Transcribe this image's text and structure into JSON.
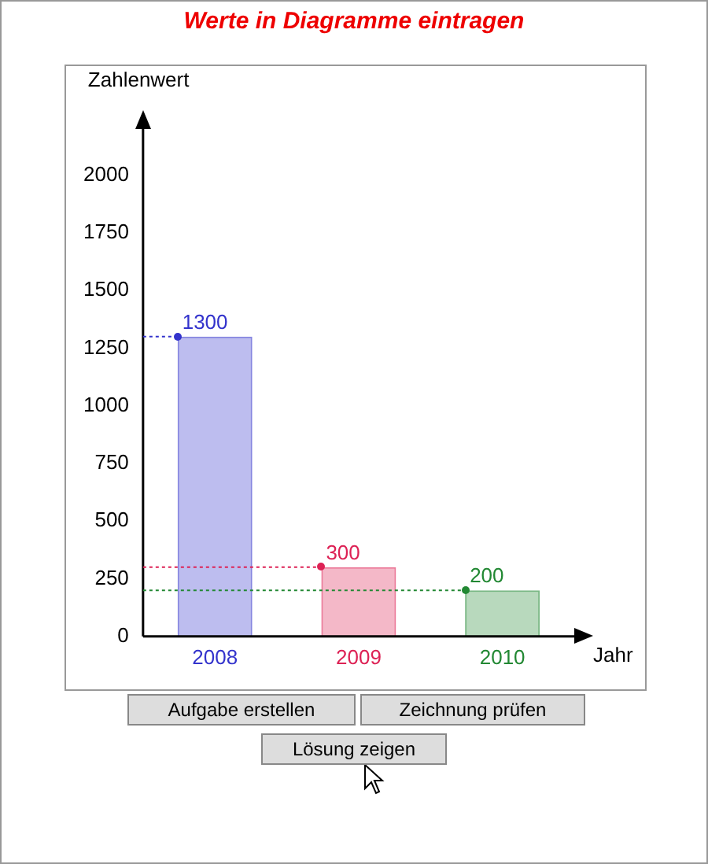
{
  "chart_data": {
    "type": "bar",
    "title": "Werte in Diagramme eintragen",
    "xlabel": "Jahr",
    "ylabel": "Zahlenwert",
    "categories": [
      "2008",
      "2009",
      "2010"
    ],
    "values": [
      1300,
      300,
      200
    ],
    "colors": [
      "#3333cc",
      "#dd2255",
      "#228833"
    ],
    "ylim": [
      0,
      2200
    ],
    "ref_lines": [
      {
        "axis": "y",
        "value": 1300,
        "color": "#3333cc",
        "line_style": "dotted"
      },
      {
        "axis": "y",
        "value": 300,
        "color": "#dd2255",
        "line_style": "dotted"
      },
      {
        "axis": "y",
        "value": 200,
        "color": "#228833",
        "line_style": "dotted"
      }
    ],
    "yticks": [
      0,
      250,
      500,
      750,
      1000,
      1250,
      1500,
      1750,
      2000
    ],
    "grid": false,
    "legend": false,
    "data_labels": true,
    "annotations": [
      "Aufgabe erstellen",
      "Zeichnung prüfen",
      "Lösung zeigen"
    ]
  }
}
